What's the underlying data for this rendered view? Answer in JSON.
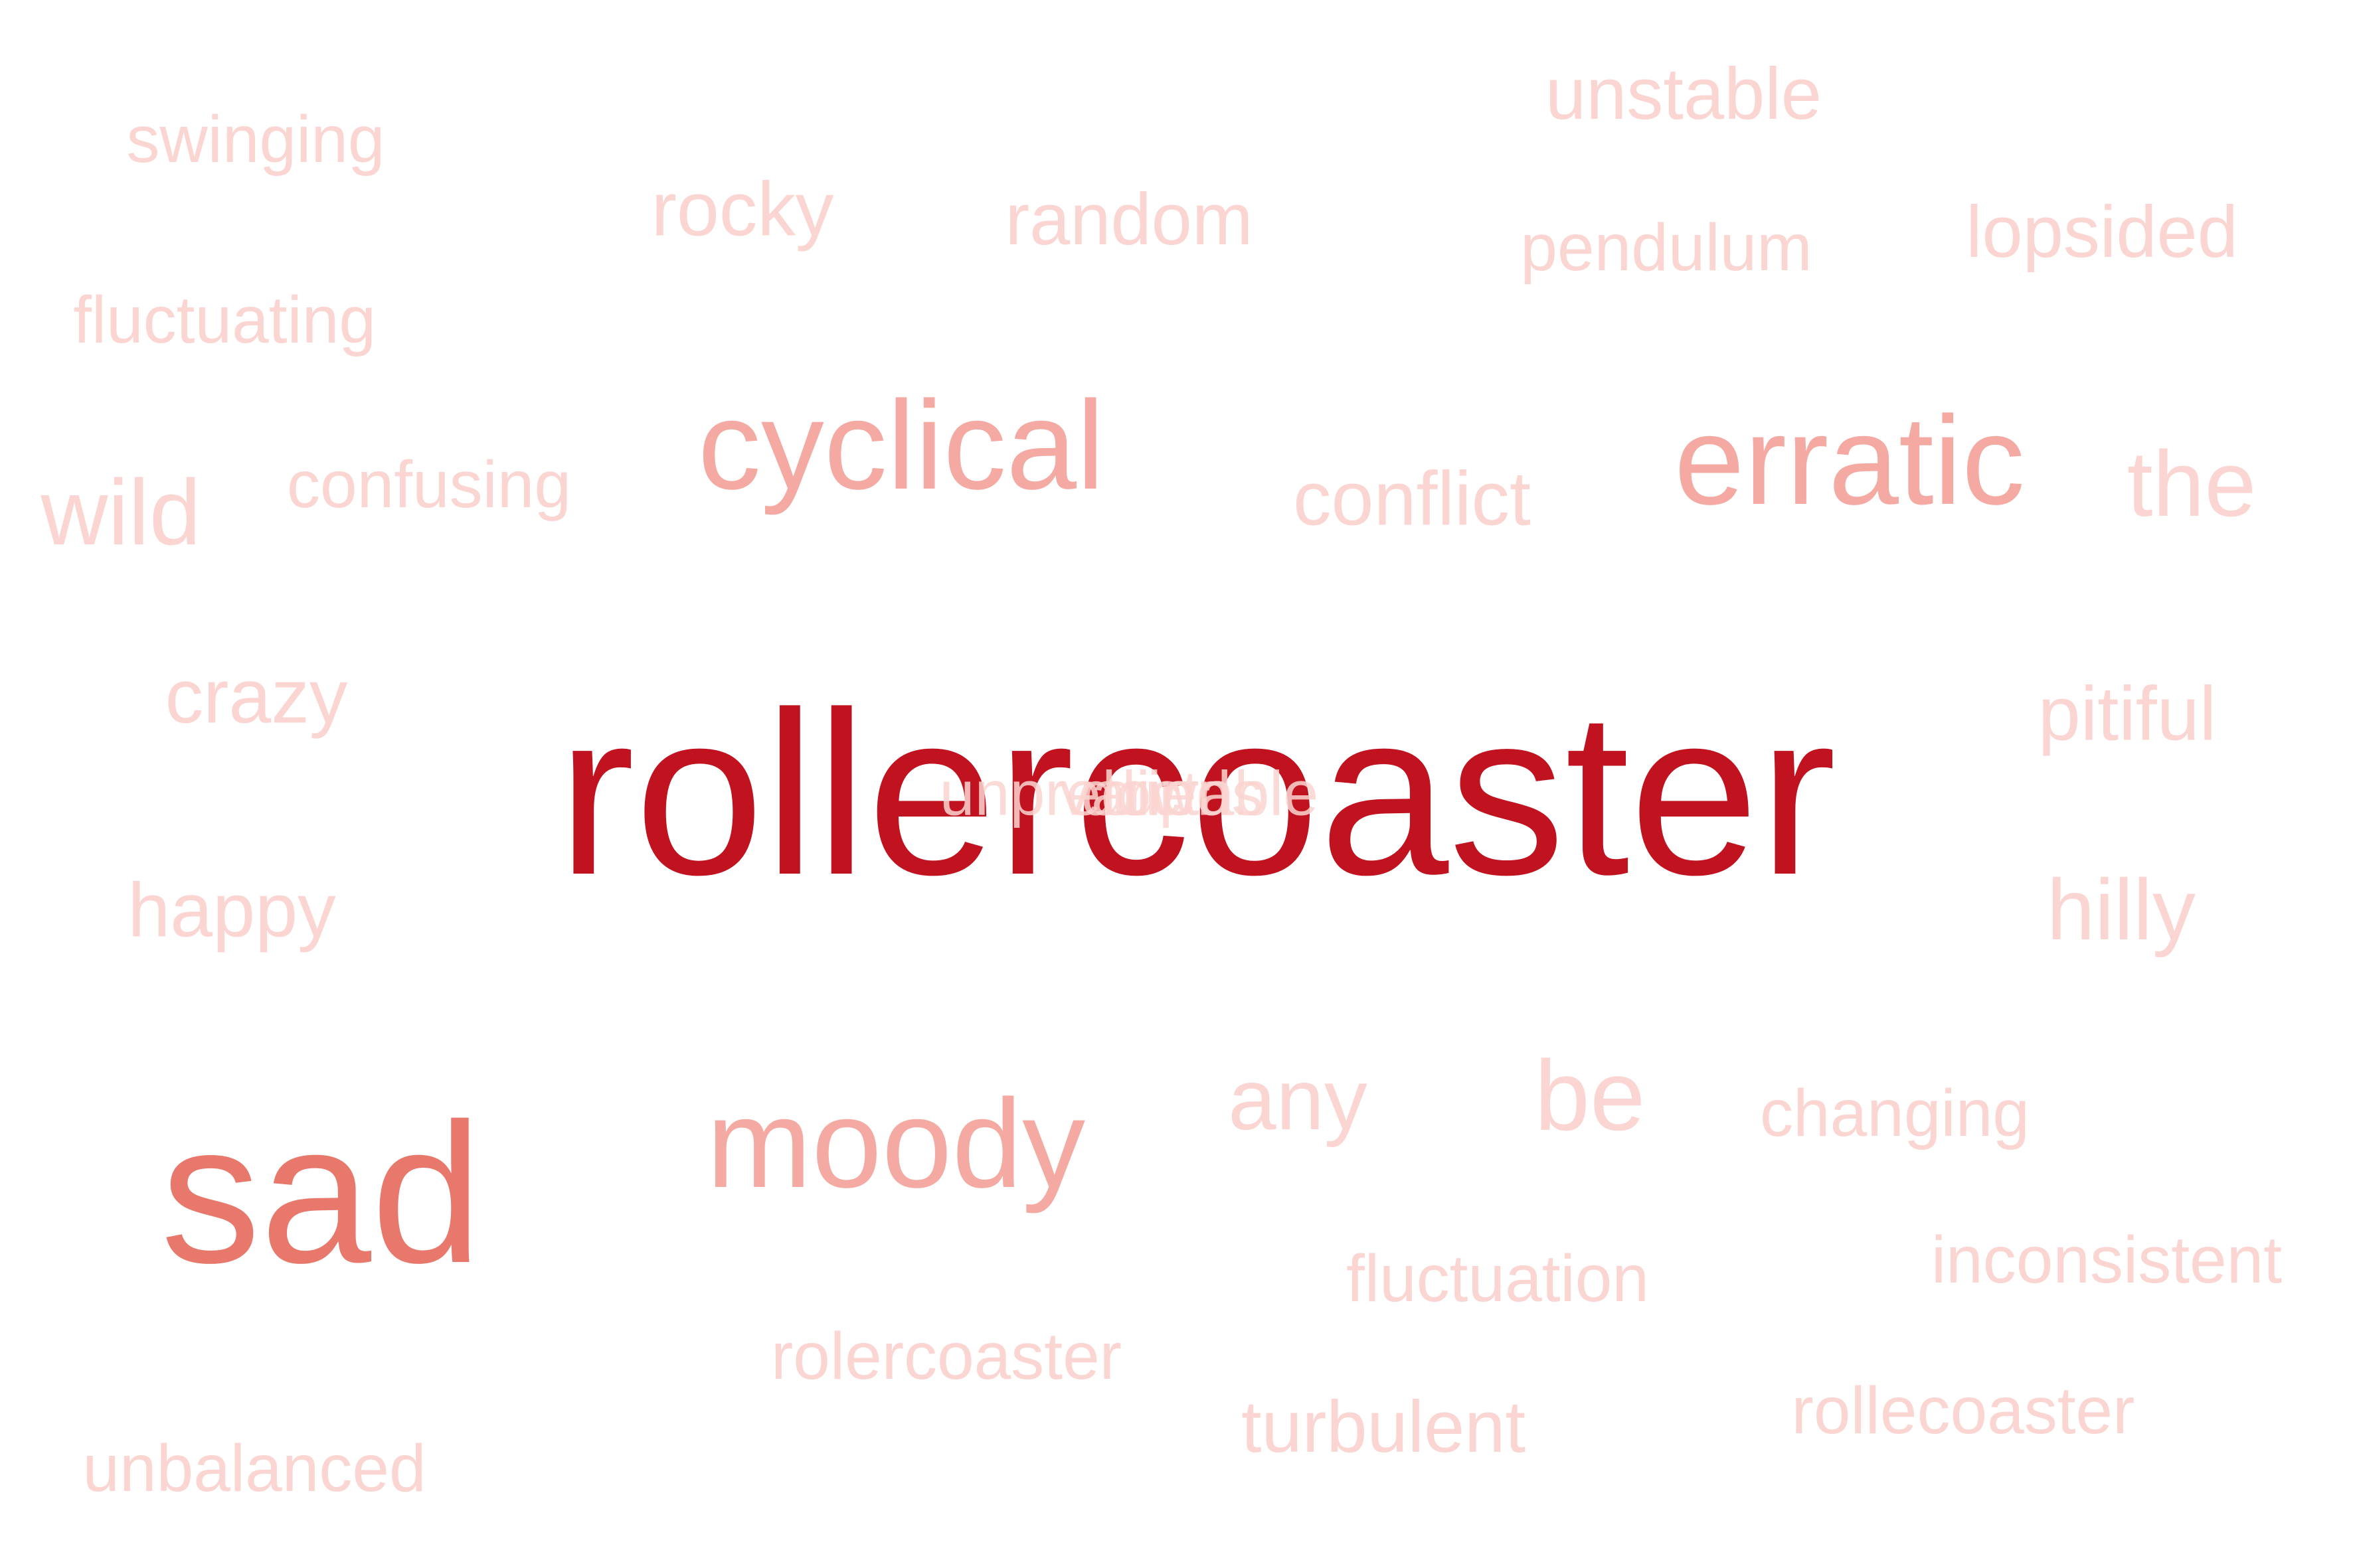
{
  "colors": {
    "tier1": "#c0121f",
    "tier2": "#e8786c",
    "tier3": "#f4aaa2",
    "tier4": "#fbd5d1"
  },
  "words": {
    "rollercoaster": "rollercoaster",
    "sad": "sad",
    "moody": "moody",
    "erratic": "erratic",
    "cyclical": "cyclical",
    "the": "the",
    "be": "be",
    "wild": "wild",
    "any": "any",
    "hilly": "hilly",
    "pitiful": "pitiful",
    "crazy": "crazy",
    "happy": "happy",
    "rocky": "rocky",
    "random": "random",
    "conflict": "conflict",
    "unstable": "unstable",
    "lopsided": "lopsided",
    "pendulum": "pendulum",
    "swinging": "swinging",
    "fluctuating": "fluctuating",
    "confusing": "confusing",
    "changing": "changing",
    "fluctuation": "fluctuation",
    "inconsistent": "inconsistent",
    "rolercoaster": "rolercoaster",
    "turbulent": "turbulent",
    "rollecoaster": "rollecoaster",
    "unbalanced": "unbalanced",
    "overlap_1": "unpredictable",
    "overlap_2": "varied",
    "overlap_3": "up",
    "overlap_4": "downs"
  }
}
